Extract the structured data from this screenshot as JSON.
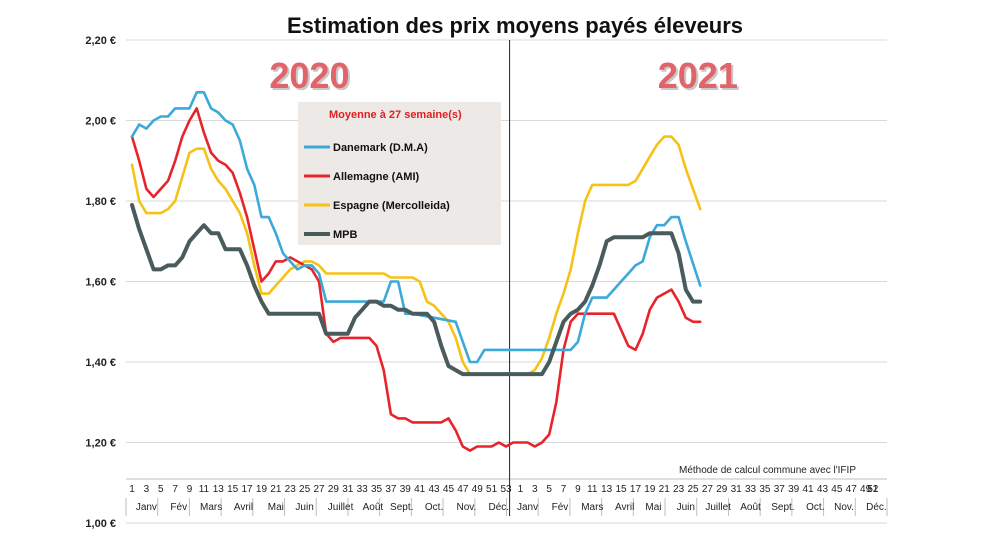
{
  "chart_data": {
    "type": "line",
    "title": "Estimation des prix moyens payés éleveurs",
    "ylim": [
      1.0,
      2.2
    ],
    "y_ticks": [
      "1,00 €",
      "1,20 €",
      "1,40 €",
      "1,60 €",
      "1,80 €",
      "2,00 €",
      "2,20 €"
    ],
    "y_tick_values": [
      1.0,
      1.2,
      1.4,
      1.6,
      1.8,
      2.0,
      2.2
    ],
    "grid": true,
    "year_labels": [
      {
        "label": "2020",
        "week": 24
      },
      {
        "label": "2021",
        "week": 78
      }
    ],
    "year_divider_week": 53.5,
    "x_week_labels": [
      "1",
      "3",
      "5",
      "7",
      "9",
      "11",
      "13",
      "15",
      "17",
      "19",
      "21",
      "23",
      "25",
      "27",
      "29",
      "31",
      "33",
      "35",
      "37",
      "39",
      "41",
      "43",
      "45",
      "47",
      "49",
      "51",
      "53",
      "1",
      "3",
      "5",
      "7",
      "9",
      "11",
      "13",
      "15",
      "17",
      "19",
      "21",
      "23",
      "25",
      "27",
      "29",
      "31",
      "33",
      "35",
      "37",
      "39",
      "41",
      "43",
      "45",
      "47",
      "49",
      "51",
      "52"
    ],
    "month_labels": [
      {
        "label": "Janv",
        "week": 3
      },
      {
        "label": "Fév",
        "week": 7.5
      },
      {
        "label": "Mars",
        "week": 12
      },
      {
        "label": "Avril",
        "week": 16.5
      },
      {
        "label": "Mai",
        "week": 21
      },
      {
        "label": "Juin",
        "week": 25
      },
      {
        "label": "Juillet",
        "week": 30
      },
      {
        "label": "Août",
        "week": 34.5
      },
      {
        "label": "Sept.",
        "week": 38.5
      },
      {
        "label": "Oct.",
        "week": 43
      },
      {
        "label": "Nov.",
        "week": 47.5
      },
      {
        "label": "Déc.",
        "week": 52
      },
      {
        "label": "Janv",
        "week": 56
      },
      {
        "label": "Fév",
        "week": 60.5
      },
      {
        "label": "Mars",
        "week": 65
      },
      {
        "label": "Avril",
        "week": 69.5
      },
      {
        "label": "Mai",
        "week": 73.5
      },
      {
        "label": "Juin",
        "week": 78
      },
      {
        "label": "Juillet",
        "week": 82.5
      },
      {
        "label": "Août",
        "week": 87
      },
      {
        "label": "Sept.",
        "week": 91.5
      },
      {
        "label": "Oct.",
        "week": 96
      },
      {
        "label": "Nov.",
        "week": 100
      },
      {
        "label": "Déc.",
        "week": 104.5
      }
    ],
    "legend": {
      "title": "Moyenne à  27 semaine(s)",
      "placement": "top-left inside plot"
    },
    "annotation": "Méthode de calcul commune avec l'IFIP",
    "series": [
      {
        "name": "Danemark (D.M.A)",
        "color": "#3BA9D9",
        "x": [
          1,
          2,
          3,
          4,
          5,
          6,
          7,
          8,
          9,
          10,
          11,
          12,
          13,
          14,
          15,
          16,
          17,
          18,
          19,
          20,
          21,
          22,
          23,
          24,
          25,
          26,
          27,
          28,
          29,
          30,
          36,
          37,
          38,
          39,
          40,
          46,
          47,
          48,
          49,
          50,
          53.5,
          62,
          63,
          64,
          65,
          66,
          67,
          68,
          69,
          70,
          71,
          72,
          73,
          74,
          75,
          76,
          77,
          78,
          80
        ],
        "y": [
          1.96,
          1.99,
          1.98,
          2.0,
          2.01,
          2.01,
          2.03,
          2.03,
          2.03,
          2.07,
          2.07,
          2.03,
          2.02,
          2.0,
          1.99,
          1.95,
          1.88,
          1.84,
          1.76,
          1.76,
          1.72,
          1.67,
          1.65,
          1.63,
          1.64,
          1.64,
          1.62,
          1.55,
          1.55,
          1.55,
          1.55,
          1.6,
          1.6,
          1.52,
          1.52,
          1.5,
          1.45,
          1.4,
          1.4,
          1.43,
          1.43,
          1.43,
          1.45,
          1.52,
          1.56,
          1.56,
          1.56,
          1.58,
          1.6,
          1.62,
          1.64,
          1.65,
          1.71,
          1.74,
          1.74,
          1.76,
          1.76,
          1.7,
          1.59
        ]
      },
      {
        "name": "Allemagne (AMI)",
        "color": "#E8242B",
        "x": [
          1,
          2,
          3,
          4,
          5,
          6,
          7,
          8,
          9,
          10,
          11,
          12,
          13,
          14,
          15,
          16,
          17,
          18,
          19,
          20,
          21,
          22,
          23,
          24,
          25,
          26,
          27,
          28,
          29,
          30,
          31,
          32,
          33,
          34,
          35,
          36,
          37,
          38,
          39,
          40,
          41,
          42,
          43,
          44,
          45,
          46,
          47,
          48,
          49,
          50,
          51,
          52,
          53,
          54,
          55,
          56,
          57,
          58,
          59,
          60,
          61,
          62,
          63,
          64,
          65,
          66,
          67,
          68,
          69,
          70,
          71,
          72,
          73,
          74,
          75,
          76,
          77,
          78,
          79,
          80
        ],
        "y": [
          1.96,
          1.9,
          1.83,
          1.81,
          1.83,
          1.85,
          1.9,
          1.96,
          2.0,
          2.03,
          1.97,
          1.92,
          1.9,
          1.89,
          1.87,
          1.82,
          1.76,
          1.68,
          1.6,
          1.62,
          1.65,
          1.65,
          1.66,
          1.65,
          1.64,
          1.63,
          1.6,
          1.47,
          1.45,
          1.46,
          1.46,
          1.46,
          1.46,
          1.46,
          1.44,
          1.38,
          1.27,
          1.26,
          1.26,
          1.25,
          1.25,
          1.25,
          1.25,
          1.25,
          1.26,
          1.23,
          1.19,
          1.18,
          1.19,
          1.19,
          1.19,
          1.2,
          1.19,
          1.2,
          1.2,
          1.2,
          1.19,
          1.2,
          1.22,
          1.3,
          1.43,
          1.5,
          1.52,
          1.52,
          1.52,
          1.52,
          1.52,
          1.52,
          1.48,
          1.44,
          1.43,
          1.47,
          1.53,
          1.56,
          1.57,
          1.58,
          1.55,
          1.51,
          1.5,
          1.5
        ]
      },
      {
        "name": "Espagne (Mercolleida)",
        "color": "#F5C215",
        "x": [
          1,
          2,
          3,
          4,
          5,
          6,
          7,
          8,
          9,
          10,
          11,
          12,
          13,
          14,
          15,
          16,
          17,
          18,
          19,
          20,
          21,
          22,
          23,
          24,
          25,
          26,
          27,
          28,
          29,
          30,
          36,
          37,
          38,
          39,
          40,
          41,
          42,
          43,
          44,
          45,
          46,
          47,
          48,
          49,
          50,
          51,
          52,
          53,
          54,
          55,
          56,
          57,
          58,
          59,
          60,
          61,
          62,
          63,
          64,
          65,
          66,
          67,
          68,
          69,
          70,
          71,
          72,
          73,
          74,
          75,
          76,
          77,
          78,
          79,
          80
        ],
        "y": [
          1.89,
          1.8,
          1.77,
          1.77,
          1.77,
          1.78,
          1.8,
          1.86,
          1.92,
          1.93,
          1.93,
          1.88,
          1.85,
          1.83,
          1.8,
          1.77,
          1.72,
          1.64,
          1.57,
          1.57,
          1.59,
          1.61,
          1.63,
          1.64,
          1.65,
          1.65,
          1.64,
          1.62,
          1.62,
          1.62,
          1.62,
          1.61,
          1.61,
          1.61,
          1.61,
          1.6,
          1.55,
          1.54,
          1.52,
          1.5,
          1.46,
          1.4,
          1.37,
          1.37,
          1.37,
          1.37,
          1.37,
          1.37,
          1.37,
          1.37,
          1.37,
          1.38,
          1.41,
          1.46,
          1.52,
          1.57,
          1.63,
          1.72,
          1.8,
          1.84,
          1.84,
          1.84,
          1.84,
          1.84,
          1.84,
          1.85,
          1.88,
          1.91,
          1.94,
          1.96,
          1.96,
          1.94,
          1.88,
          1.83,
          1.78
        ]
      },
      {
        "name": "MPB",
        "color": "#4A5B5C",
        "x": [
          1,
          2,
          3,
          4,
          5,
          6,
          7,
          8,
          9,
          10,
          11,
          12,
          13,
          14,
          15,
          16,
          17,
          18,
          19,
          20,
          21,
          22,
          23,
          24,
          25,
          26,
          27,
          28,
          29,
          30,
          31,
          32,
          33,
          34,
          35,
          36,
          37,
          38,
          39,
          40,
          41,
          42,
          43,
          44,
          45,
          46,
          47,
          48,
          49,
          50,
          51,
          52,
          53,
          54,
          55,
          56,
          57,
          58,
          59,
          60,
          61,
          62,
          63,
          64,
          65,
          66,
          67,
          68,
          69,
          70,
          71,
          72,
          73,
          74,
          75,
          76,
          77,
          78,
          79,
          80
        ],
        "y": [
          1.79,
          1.73,
          1.68,
          1.63,
          1.63,
          1.64,
          1.64,
          1.66,
          1.7,
          1.72,
          1.74,
          1.72,
          1.72,
          1.68,
          1.68,
          1.68,
          1.64,
          1.59,
          1.55,
          1.52,
          1.52,
          1.52,
          1.52,
          1.52,
          1.52,
          1.52,
          1.52,
          1.47,
          1.47,
          1.47,
          1.47,
          1.51,
          1.53,
          1.55,
          1.55,
          1.54,
          1.54,
          1.53,
          1.53,
          1.52,
          1.52,
          1.52,
          1.5,
          1.44,
          1.39,
          1.38,
          1.37,
          1.37,
          1.37,
          1.37,
          1.37,
          1.37,
          1.37,
          1.37,
          1.37,
          1.37,
          1.37,
          1.37,
          1.4,
          1.45,
          1.5,
          1.52,
          1.53,
          1.55,
          1.59,
          1.64,
          1.7,
          1.71,
          1.71,
          1.71,
          1.71,
          1.71,
          1.72,
          1.72,
          1.72,
          1.72,
          1.67,
          1.58,
          1.55,
          1.55
        ]
      }
    ]
  }
}
